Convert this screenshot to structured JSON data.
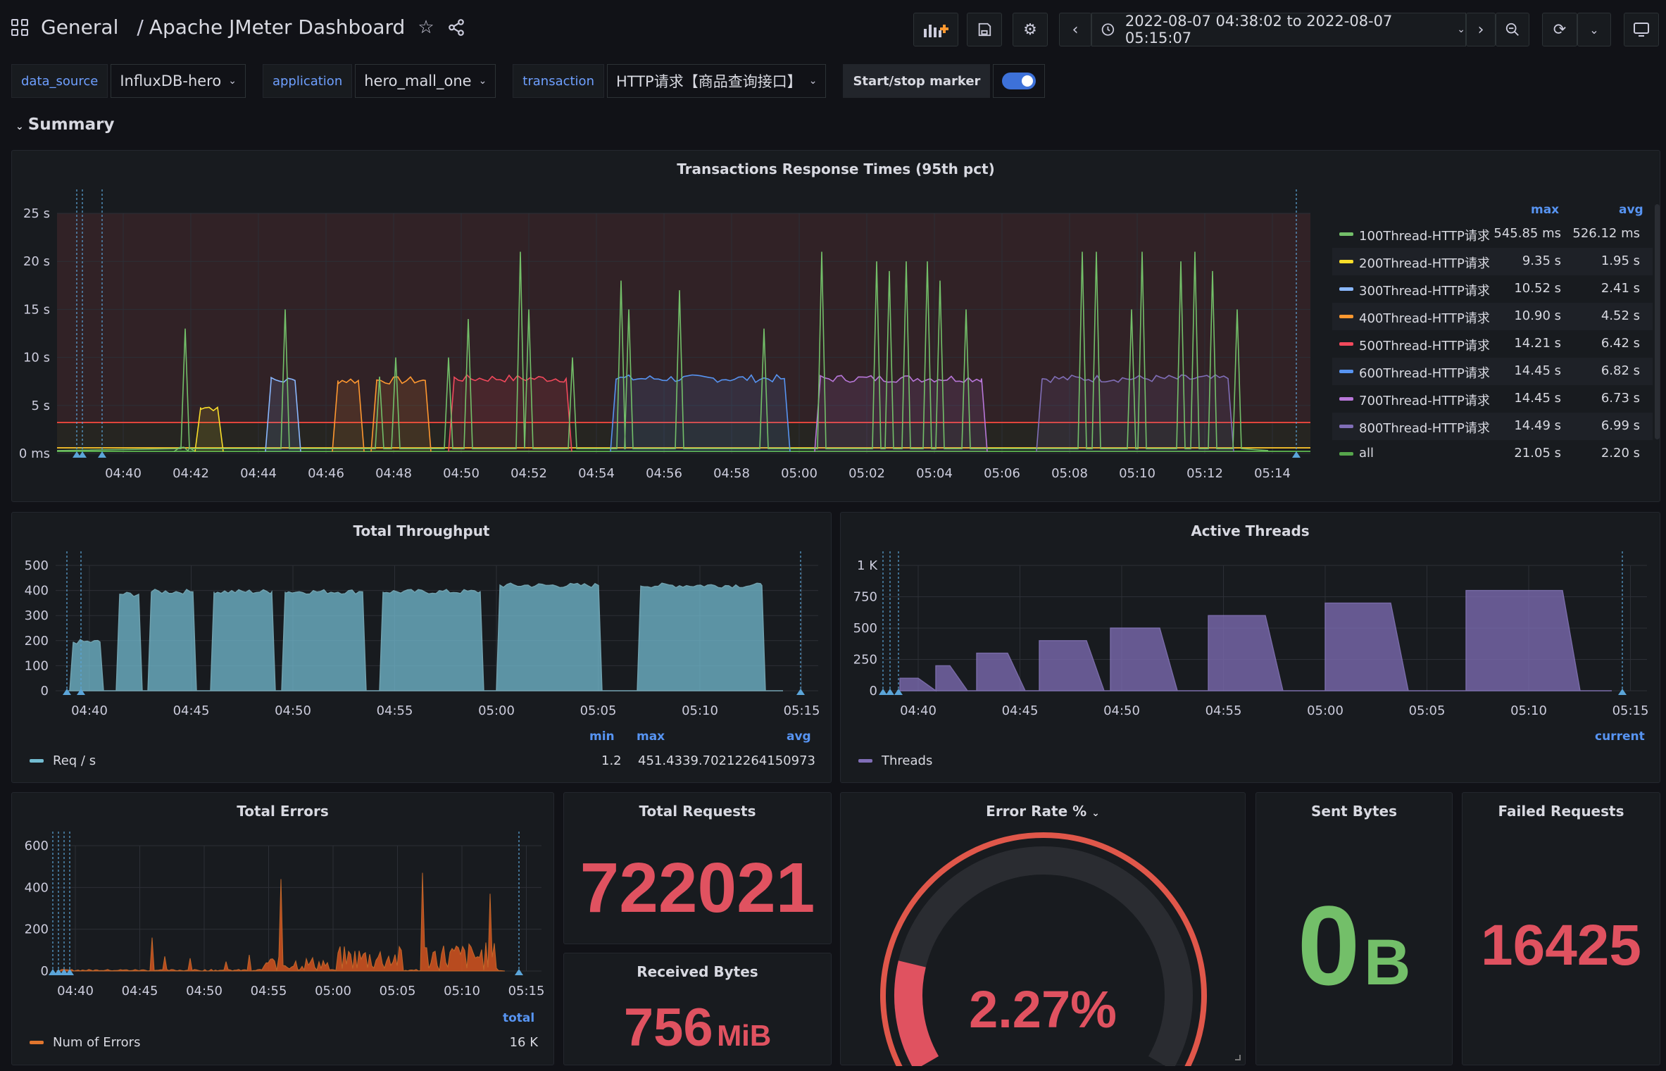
{
  "nav": {
    "folder": "General",
    "dashboard_title": "Apache JMeter Dashboard",
    "time_range": "2022-08-07 04:38:02 to 2022-08-07 05:15:07"
  },
  "variables": [
    {
      "label": "data_source",
      "value": "InfluxDB-hero"
    },
    {
      "label": "application",
      "value": "hero_mall_one"
    },
    {
      "label": "transaction",
      "value": "HTTP请求【商品查询接口】"
    },
    {
      "label": "Start/stop marker",
      "toggle": true
    }
  ],
  "section": {
    "title": "Summary"
  },
  "colors": {
    "green": "#73bf69",
    "yellow": "#fade2a",
    "lightblue": "#8ab8ff",
    "orange": "#ff9830",
    "red": "#f2495c",
    "blue": "#5794f2",
    "purple": "#b877d9",
    "violet": "#806eb7",
    "throughput": "#73bcd1",
    "threads": "#806eb7",
    "errors": "#e0752d",
    "stat_red": "#f2495c"
  },
  "response_times": {
    "title": "Transactions Response Times (95th pct)",
    "y_ticks": [
      "25 s",
      "20 s",
      "15 s",
      "10 s",
      "5 s",
      "0 ms"
    ],
    "x_ticks": [
      "04:40",
      "04:42",
      "04:44",
      "04:46",
      "04:48",
      "04:50",
      "04:52",
      "04:54",
      "04:56",
      "04:58",
      "05:00",
      "05:02",
      "05:04",
      "05:06",
      "05:08",
      "05:10",
      "05:12",
      "05:14"
    ],
    "legend_headers": {
      "max": "max",
      "avg": "avg"
    },
    "legend": [
      {
        "name": "100Thread-HTTP请求",
        "max": "545.85 ms",
        "avg": "526.12 ms",
        "color": "#73bf69"
      },
      {
        "name": "200Thread-HTTP请求",
        "max": "9.35 s",
        "avg": "1.95 s",
        "color": "#fade2a"
      },
      {
        "name": "300Thread-HTTP请求",
        "max": "10.52 s",
        "avg": "2.41 s",
        "color": "#8ab8ff"
      },
      {
        "name": "400Thread-HTTP请求",
        "max": "10.90 s",
        "avg": "4.52 s",
        "color": "#ff9830"
      },
      {
        "name": "500Thread-HTTP请求",
        "max": "14.21 s",
        "avg": "6.42 s",
        "color": "#f2495c"
      },
      {
        "name": "600Thread-HTTP请求",
        "max": "14.45 s",
        "avg": "6.82 s",
        "color": "#5794f2"
      },
      {
        "name": "700Thread-HTTP请求",
        "max": "14.45 s",
        "avg": "6.73 s",
        "color": "#b877d9"
      },
      {
        "name": "800Thread-HTTP请求",
        "max": "14.49 s",
        "avg": "6.99 s",
        "color": "#806eb7"
      },
      {
        "name": "all",
        "max": "21.05 s",
        "avg": "2.20 s",
        "color": "#56a64b"
      }
    ]
  },
  "throughput": {
    "title": "Total Throughput",
    "y_ticks": [
      "500",
      "400",
      "300",
      "200",
      "100",
      "0"
    ],
    "x_ticks": [
      "04:40",
      "04:45",
      "04:50",
      "04:55",
      "05:00",
      "05:05",
      "05:10",
      "05:15"
    ],
    "legend_headers": {
      "min": "min",
      "max": "max",
      "avg": "avg"
    },
    "series_name": "Req / s",
    "min": "1.2",
    "max": "451.4",
    "avg": "339.70212264150973"
  },
  "threads": {
    "title": "Active Threads",
    "y_ticks": [
      "1 K",
      "750",
      "500",
      "250",
      "0"
    ],
    "x_ticks": [
      "04:40",
      "04:45",
      "04:50",
      "04:55",
      "05:00",
      "05:05",
      "05:10",
      "05:15"
    ],
    "legend_headers": {
      "current": "current"
    },
    "series_name": "Threads"
  },
  "errors": {
    "title": "Total Errors",
    "y_ticks": [
      "600",
      "400",
      "200",
      "0"
    ],
    "x_ticks": [
      "04:40",
      "04:45",
      "04:50",
      "04:55",
      "05:00",
      "05:05",
      "05:10",
      "05:15"
    ],
    "legend_headers": {
      "total": "total"
    },
    "series_name": "Num of Errors",
    "total": "16 K"
  },
  "stats": {
    "total_requests": {
      "title": "Total Requests",
      "value": "722021"
    },
    "received_bytes": {
      "title": "Received Bytes",
      "value": "756",
      "unit": "MiB"
    },
    "error_rate": {
      "title": "Error Rate %",
      "value": "2.27%",
      "fraction": 0.0227
    },
    "sent_bytes": {
      "title": "Sent Bytes",
      "value": "0",
      "unit": "B"
    },
    "failed_requests": {
      "title": "Failed Requests",
      "value": "16425"
    }
  }
}
